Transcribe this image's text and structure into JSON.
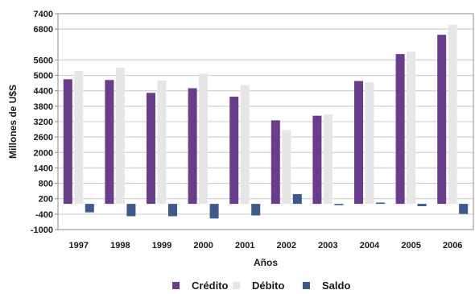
{
  "chart_data": {
    "type": "bar",
    "title": "",
    "xlabel": "Años",
    "ylabel": "Millones de U$S",
    "categories": [
      "1997",
      "1998",
      "1999",
      "2000",
      "2001",
      "2002",
      "2003",
      "2004",
      "2005",
      "2006"
    ],
    "series": [
      {
        "name": "Crédito",
        "color": "#6a3d8c",
        "values": [
          4850,
          4820,
          4320,
          4500,
          4170,
          3250,
          3430,
          4780,
          5830,
          6580
        ]
      },
      {
        "name": "Débito",
        "color": "#e6e6e6",
        "values": [
          5180,
          5300,
          4800,
          5070,
          4620,
          2870,
          3480,
          4730,
          5920,
          6970
        ]
      },
      {
        "name": "Saldo",
        "color": "#3d5a8c",
        "values": [
          -330,
          -480,
          -480,
          -570,
          -450,
          380,
          -50,
          50,
          -90,
          -390
        ]
      }
    ],
    "ylim": [
      -1000,
      7400
    ],
    "yticks": [
      7400,
      6800,
      5600,
      5000,
      4400,
      3800,
      3200,
      2600,
      2000,
      1400,
      800,
      200,
      -400,
      -1000
    ],
    "ytick_labels": [
      "7400",
      "6800",
      "5600",
      "5000",
      "4400",
      "3800",
      "3200",
      "2600",
      "2000",
      "1400",
      "800",
      "200",
      "-400",
      "-1000"
    ],
    "grid": true,
    "legend_position": "bottom"
  }
}
